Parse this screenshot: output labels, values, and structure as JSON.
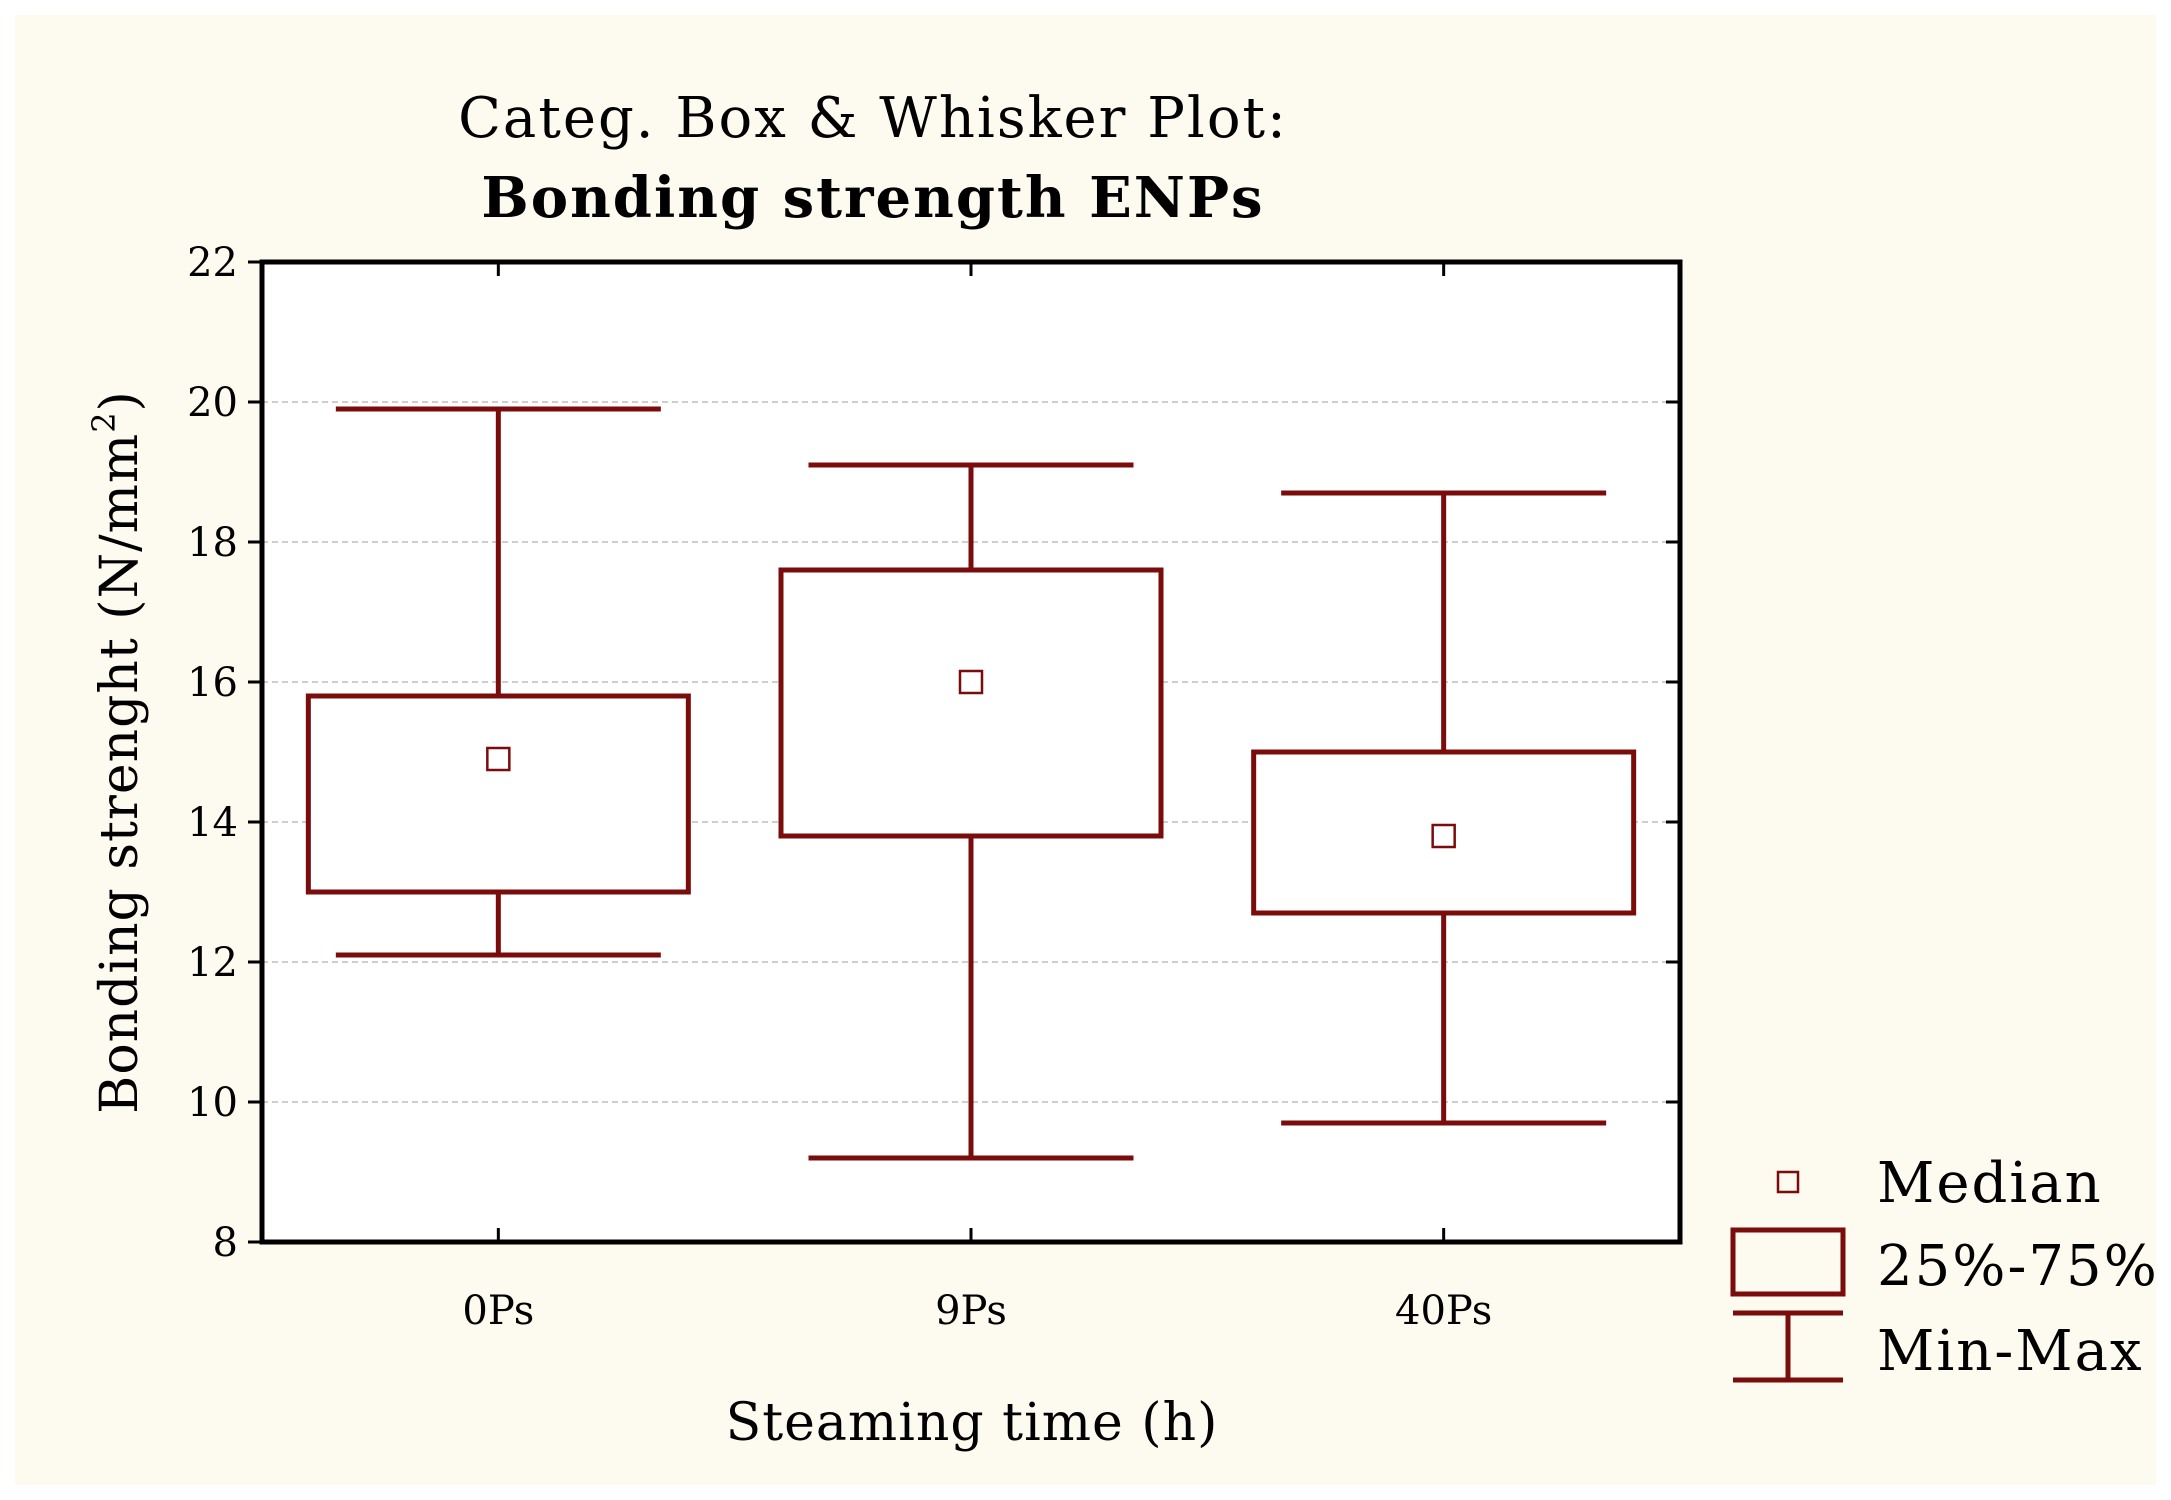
{
  "chart_data": {
    "type": "boxplot",
    "title": "Categ. Box & Whisker Plot:",
    "subtitle": "Bonding strength ENPs",
    "xlabel": "Steaming time  (h)",
    "ylabel": "Bonding strenght (N/mm",
    "ylabel_superscript": "2",
    "ylabel_suffix": ")",
    "ylim": [
      8,
      22
    ],
    "yticks": [
      "8",
      "10",
      "12",
      "14",
      "16",
      "18",
      "20",
      "22"
    ],
    "grid": true,
    "categories": [
      "0Ps",
      "9Ps",
      "40Ps"
    ],
    "series": [
      {
        "category": "0Ps",
        "min": 12.1,
        "q1": 13.0,
        "median": 14.9,
        "q3": 15.8,
        "max": 19.9
      },
      {
        "category": "9Ps",
        "min": 9.2,
        "q1": 13.8,
        "median": 16.0,
        "q3": 17.6,
        "max": 19.1
      },
      {
        "category": "40Ps",
        "min": 9.7,
        "q1": 12.7,
        "median": 13.8,
        "q3": 15.0,
        "max": 18.7
      }
    ],
    "legend": {
      "position": "bottom-right",
      "items": [
        "Median",
        "25%-75%",
        "Min-Max"
      ]
    },
    "colors": {
      "series": "#7b0c0c",
      "grid": "#bdbdbd",
      "axis": "#000000",
      "background": "#fdfaf0"
    }
  }
}
